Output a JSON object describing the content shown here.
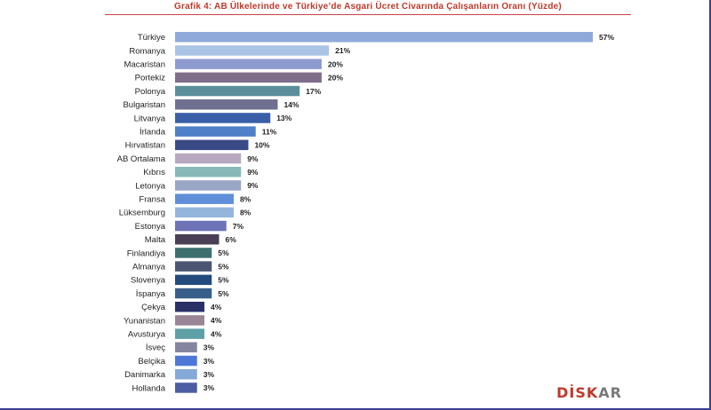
{
  "title": "Grafik 4: AB Ülkelerinde ve Türkiye’de Asgari Ücret Civarında Çalışanların Oranı (Yüzde)",
  "logo": {
    "part1": "DİSK",
    "part2": "AR"
  },
  "chart_data": {
    "type": "bar",
    "orientation": "horizontal",
    "title": "Grafik 4: AB Ülkelerinde ve Türkiye’de Asgari Ücret Civarında Çalışanların Oranı (Yüzde)",
    "xlabel": "",
    "ylabel": "",
    "grid": false,
    "xlim": [
      0,
      57
    ],
    "value_suffix": "%",
    "categories": [
      "Türkiye",
      "Romanya",
      "Macaristan",
      "Portekiz",
      "Polonya",
      "Bulgaristan",
      "Litvanya",
      "İrlanda",
      "Hırvatistan",
      "AB Ortalama",
      "Kıbrıs",
      "Letonya",
      "Fransa",
      "Lüksemburg",
      "Estonya",
      "Malta",
      "Finlandiya",
      "Almanya",
      "Slovenya",
      "İspanya",
      "Çekya",
      "Yunanistan",
      "Avusturya",
      "İsveç",
      "Belçika",
      "Danimarka",
      "Hollanda"
    ],
    "values": [
      57,
      21,
      20,
      20,
      17,
      14,
      13,
      11,
      10,
      9,
      9,
      9,
      8,
      8,
      7,
      6,
      5,
      5,
      5,
      5,
      4,
      4,
      4,
      3,
      3,
      3,
      3
    ],
    "value_labels": [
      "57%",
      "21%",
      "20%",
      "20%",
      "17%",
      "14%",
      "13%",
      "11%",
      "10%",
      "9%",
      "9%",
      "9%",
      "8%",
      "8%",
      "7%",
      "6%",
      "5%",
      "5%",
      "5%",
      "5%",
      "4%",
      "4%",
      "4%",
      "3%",
      "3%",
      "3%",
      "3%"
    ],
    "colors": [
      "#8eaadb",
      "#a9c4e4",
      "#8e9bd0",
      "#7f6e8a",
      "#5b8e9b",
      "#6f6f91",
      "#3a5ea8",
      "#4f80c8",
      "#3a4a86",
      "#b7a8bf",
      "#88b8b8",
      "#9aa6c6",
      "#5f8fd8",
      "#94b6dd",
      "#6e73b8",
      "#4a3f55",
      "#3e6f6f",
      "#4a5672",
      "#234a7c",
      "#385e8a",
      "#2a2f66",
      "#9a8596",
      "#5fa0a6",
      "#8585a0",
      "#4e78d8",
      "#84a9d8",
      "#4d5da4"
    ]
  }
}
